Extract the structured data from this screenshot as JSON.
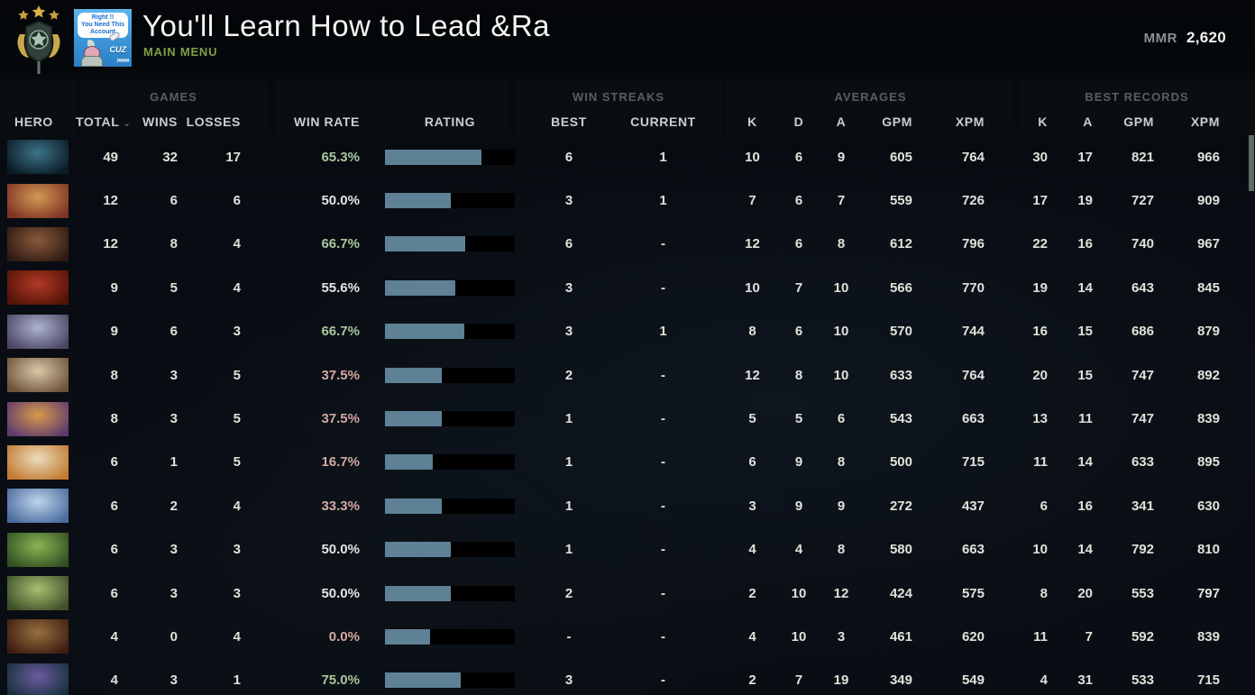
{
  "header": {
    "player_name": "You'll Learn How to Lead &Ra",
    "nav_label": "MAIN MENU",
    "mmr_label": "MMR",
    "mmr_value": "2,620",
    "avatar_text": {
      "line1": "Right !!",
      "line2": "You Need This",
      "line3": "Account",
      "tag": "CUZ",
      "chevrons": "»»»»"
    }
  },
  "table": {
    "groups": {
      "games": "GAMES",
      "win_streaks": "WIN STREAKS",
      "averages": "AVERAGES",
      "best_records": "BEST RECORDS"
    },
    "columns": {
      "hero": "HERO",
      "total": "TOTAL",
      "wins": "WINS",
      "losses": "LOSSES",
      "win_rate": "WIN RATE",
      "rating": "RATING",
      "best": "BEST",
      "current": "CURRENT",
      "k": "K",
      "d": "D",
      "a": "A",
      "gpm": "GPM",
      "xpm": "XPM"
    },
    "rows": [
      {
        "hero": "phantom-assassin",
        "portrait": [
          "#3d7387",
          "#0b1b26"
        ],
        "total": "49",
        "wins": "32",
        "losses": "17",
        "win_rate": "65.3%",
        "win_rate_color": "green",
        "rating_pct": 74,
        "streak_best": "6",
        "streak_current": "1",
        "avg_k": "10",
        "avg_d": "6",
        "avg_a": "9",
        "avg_gpm": "605",
        "avg_xpm": "764",
        "best_k": "30",
        "best_a": "17",
        "best_gpm": "821",
        "best_xpm": "966"
      },
      {
        "hero": "troll-warlord",
        "portrait": [
          "#d29a55",
          "#7e3322"
        ],
        "total": "12",
        "wins": "6",
        "losses": "6",
        "win_rate": "50.0%",
        "win_rate_color": "white",
        "rating_pct": 51,
        "streak_best": "3",
        "streak_current": "1",
        "avg_k": "7",
        "avg_d": "6",
        "avg_a": "7",
        "avg_gpm": "559",
        "avg_xpm": "726",
        "best_k": "17",
        "best_a": "19",
        "best_gpm": "727",
        "best_xpm": "909"
      },
      {
        "hero": "ursa",
        "portrait": [
          "#8a5a3c",
          "#2e1a12"
        ],
        "total": "12",
        "wins": "8",
        "losses": "4",
        "win_rate": "66.7%",
        "win_rate_color": "green",
        "rating_pct": 62,
        "streak_best": "6",
        "streak_current": "-",
        "avg_k": "12",
        "avg_d": "6",
        "avg_a": "8",
        "avg_gpm": "612",
        "avg_xpm": "796",
        "best_k": "22",
        "best_a": "16",
        "best_gpm": "740",
        "best_xpm": "967"
      },
      {
        "hero": "bloodseeker",
        "portrait": [
          "#b03a24",
          "#541208"
        ],
        "total": "9",
        "wins": "5",
        "losses": "4",
        "win_rate": "55.6%",
        "win_rate_color": "white",
        "rating_pct": 54,
        "streak_best": "3",
        "streak_current": "-",
        "avg_k": "10",
        "avg_d": "7",
        "avg_a": "10",
        "avg_gpm": "566",
        "avg_xpm": "770",
        "best_k": "19",
        "best_a": "14",
        "best_gpm": "643",
        "best_xpm": "845"
      },
      {
        "hero": "drow-ranger",
        "portrait": [
          "#aab4cf",
          "#4d4663"
        ],
        "total": "9",
        "wins": "6",
        "losses": "3",
        "win_rate": "66.7%",
        "win_rate_color": "green",
        "rating_pct": 61,
        "streak_best": "3",
        "streak_current": "1",
        "avg_k": "8",
        "avg_d": "6",
        "avg_a": "10",
        "avg_gpm": "570",
        "avg_xpm": "744",
        "best_k": "16",
        "best_a": "15",
        "best_gpm": "686",
        "best_xpm": "879"
      },
      {
        "hero": "sniper",
        "portrait": [
          "#d8c9a8",
          "#6e5138"
        ],
        "total": "8",
        "wins": "3",
        "losses": "5",
        "win_rate": "37.5%",
        "win_rate_color": "red",
        "rating_pct": 44,
        "streak_best": "2",
        "streak_current": "-",
        "avg_k": "12",
        "avg_d": "8",
        "avg_a": "10",
        "avg_gpm": "633",
        "avg_xpm": "764",
        "best_k": "20",
        "best_a": "15",
        "best_gpm": "747",
        "best_xpm": "892"
      },
      {
        "hero": "anti-mage",
        "portrait": [
          "#d89a4a",
          "#5f3a6e"
        ],
        "total": "8",
        "wins": "3",
        "losses": "5",
        "win_rate": "37.5%",
        "win_rate_color": "red",
        "rating_pct": 44,
        "streak_best": "1",
        "streak_current": "-",
        "avg_k": "5",
        "avg_d": "5",
        "avg_a": "6",
        "avg_gpm": "543",
        "avg_xpm": "663",
        "best_k": "13",
        "best_a": "11",
        "best_gpm": "747",
        "best_xpm": "839"
      },
      {
        "hero": "bristleback",
        "portrait": [
          "#e9dcbc",
          "#c47a30"
        ],
        "total": "6",
        "wins": "1",
        "losses": "5",
        "win_rate": "16.7%",
        "win_rate_color": "red",
        "rating_pct": 37,
        "streak_best": "1",
        "streak_current": "-",
        "avg_k": "6",
        "avg_d": "9",
        "avg_a": "8",
        "avg_gpm": "500",
        "avg_xpm": "715",
        "best_k": "11",
        "best_a": "14",
        "best_gpm": "633",
        "best_xpm": "895"
      },
      {
        "hero": "crystal-maiden",
        "portrait": [
          "#bcd3ea",
          "#4a6b9d"
        ],
        "total": "6",
        "wins": "2",
        "losses": "4",
        "win_rate": "33.3%",
        "win_rate_color": "red",
        "rating_pct": 44,
        "streak_best": "1",
        "streak_current": "-",
        "avg_k": "3",
        "avg_d": "9",
        "avg_a": "9",
        "avg_gpm": "272",
        "avg_xpm": "437",
        "best_k": "6",
        "best_a": "16",
        "best_gpm": "341",
        "best_xpm": "630"
      },
      {
        "hero": "medusa",
        "portrait": [
          "#8cb554",
          "#324f22"
        ],
        "total": "6",
        "wins": "3",
        "losses": "3",
        "win_rate": "50.0%",
        "win_rate_color": "white",
        "rating_pct": 51,
        "streak_best": "1",
        "streak_current": "-",
        "avg_k": "4",
        "avg_d": "4",
        "avg_a": "8",
        "avg_gpm": "580",
        "avg_xpm": "663",
        "best_k": "10",
        "best_a": "14",
        "best_gpm": "792",
        "best_xpm": "810"
      },
      {
        "hero": "undying",
        "portrait": [
          "#a8bf72",
          "#3e4f28"
        ],
        "total": "6",
        "wins": "3",
        "losses": "3",
        "win_rate": "50.0%",
        "win_rate_color": "white",
        "rating_pct": 51,
        "streak_best": "2",
        "streak_current": "-",
        "avg_k": "2",
        "avg_d": "10",
        "avg_a": "12",
        "avg_gpm": "424",
        "avg_xpm": "575",
        "best_k": "8",
        "best_a": "20",
        "best_gpm": "553",
        "best_xpm": "797"
      },
      {
        "hero": "lifestealer",
        "portrait": [
          "#96703f",
          "#3f1d12"
        ],
        "total": "4",
        "wins": "0",
        "losses": "4",
        "win_rate": "0.0%",
        "win_rate_color": "red",
        "rating_pct": 35,
        "streak_best": "-",
        "streak_current": "-",
        "avg_k": "4",
        "avg_d": "10",
        "avg_a": "3",
        "avg_gpm": "461",
        "avg_xpm": "620",
        "best_k": "11",
        "best_a": "7",
        "best_gpm": "592",
        "best_xpm": "839"
      },
      {
        "hero": "faceless-void",
        "portrait": [
          "#6a5b9e",
          "#17303d"
        ],
        "total": "4",
        "wins": "3",
        "losses": "1",
        "win_rate": "75.0%",
        "win_rate_color": "green",
        "rating_pct": 58,
        "streak_best": "3",
        "streak_current": "-",
        "avg_k": "2",
        "avg_d": "7",
        "avg_a": "19",
        "avg_gpm": "349",
        "avg_xpm": "549",
        "best_k": "4",
        "best_a": "31",
        "best_gpm": "533",
        "best_xpm": "715"
      }
    ]
  },
  "colors": {
    "rating_bar_fill": "#5e8195",
    "rating_bar_bg": "#000000",
    "win_rate": {
      "green": "#aac79c",
      "white": "#e3e6e1",
      "red": "#d3a8a2"
    },
    "main_menu_green": "#7f9d45",
    "value_text": "#dfe3da"
  }
}
